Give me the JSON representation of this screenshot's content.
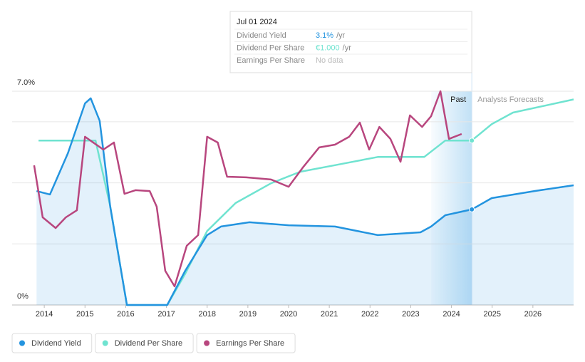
{
  "chart_data": {
    "type": "line",
    "tooltip": {
      "date": "Jul 01 2024",
      "rows": [
        {
          "label": "Dividend Yield",
          "value": "3.1%",
          "unit": "/yr",
          "color": "#2394df"
        },
        {
          "label": "Dividend Per Share",
          "value": "€1.000",
          "unit": "/yr",
          "color": "#6fe3d0"
        },
        {
          "label": "Earnings Per Share",
          "value": "No data",
          "color": "#bbbbbb"
        }
      ]
    },
    "annotations": {
      "past": "Past",
      "forecast": "Analysts Forecasts"
    },
    "today": 2024.5,
    "past_region": [
      2023.5,
      2024.5
    ],
    "xlim": [
      2013.21,
      2027.0
    ],
    "xticks": [
      2014,
      2015,
      2016,
      2017,
      2018,
      2019,
      2020,
      2021,
      2022,
      2023,
      2024,
      2025,
      2026
    ],
    "ylim": [
      0,
      7
    ],
    "yticks": [
      {
        "value": 0,
        "label": "0%"
      },
      {
        "value": 7,
        "label": "7.0%"
      }
    ],
    "ygrid": [
      2,
      4,
      6
    ],
    "y2lim": [
      0,
      1.3
    ],
    "y3lim": [
      0,
      10
    ],
    "series": [
      {
        "name": "Dividend Yield",
        "color": "#2394df",
        "area": true,
        "x": [
          2013.81,
          2014.14,
          2014.58,
          2015.0,
          2015.14,
          2015.36,
          2015.62,
          2016.03,
          2017.02,
          2017.46,
          2018.0,
          2018.34,
          2019.04,
          2020.0,
          2021.14,
          2022.19,
          2023.24,
          2023.5,
          2023.85,
          2024.5,
          2024.99,
          2026.04,
          2027.0
        ],
        "values": [
          3.73,
          3.62,
          4.97,
          6.6,
          6.77,
          6.03,
          3.22,
          0,
          0,
          1.12,
          2.29,
          2.57,
          2.71,
          2.61,
          2.57,
          2.29,
          2.38,
          2.57,
          2.94,
          3.13,
          3.5,
          3.73,
          3.92
        ]
      },
      {
        "name": "Dividend Per Share",
        "color": "#6fe3d0",
        "axis": "y2",
        "x": [
          2013.86,
          2015.26,
          2015.62,
          2016.03,
          2017.02,
          2017.46,
          2018.0,
          2018.7,
          2019.57,
          2020.28,
          2021.14,
          2022.19,
          2023.33,
          2023.85,
          2024.5,
          2024.99,
          2025.51,
          2027.0
        ],
        "values": [
          1.0,
          1.0,
          0.6,
          0,
          0,
          0.19,
          0.45,
          0.62,
          0.74,
          0.81,
          0.85,
          0.9,
          0.9,
          1.0,
          1.0,
          1.1,
          1.17,
          1.25
        ]
      },
      {
        "name": "Earnings Per Share",
        "color": "#b8467e",
        "axis": "y3",
        "x": [
          2013.75,
          2013.96,
          2014.28,
          2014.53,
          2014.8,
          2015.0,
          2015.45,
          2015.71,
          2015.97,
          2016.24,
          2016.59,
          2016.76,
          2016.97,
          2017.2,
          2017.5,
          2017.78,
          2018.0,
          2018.26,
          2018.49,
          2018.96,
          2019.57,
          2020.0,
          2020.35,
          2020.75,
          2021.14,
          2021.49,
          2021.75,
          2021.98,
          2022.23,
          2022.5,
          2022.75,
          2022.98,
          2023.28,
          2023.5,
          2023.73,
          2023.94,
          2024.25
        ],
        "values": [
          6.53,
          4.1,
          3.6,
          4.1,
          4.43,
          7.87,
          7.27,
          7.6,
          5.2,
          5.37,
          5.33,
          4.6,
          1.6,
          0.87,
          2.77,
          3.27,
          7.87,
          7.6,
          6.0,
          5.97,
          5.87,
          5.53,
          6.43,
          7.37,
          7.5,
          7.87,
          8.53,
          7.27,
          8.33,
          7.77,
          6.7,
          8.87,
          8.33,
          8.83,
          10,
          7.77,
          8.0
        ]
      }
    ]
  }
}
